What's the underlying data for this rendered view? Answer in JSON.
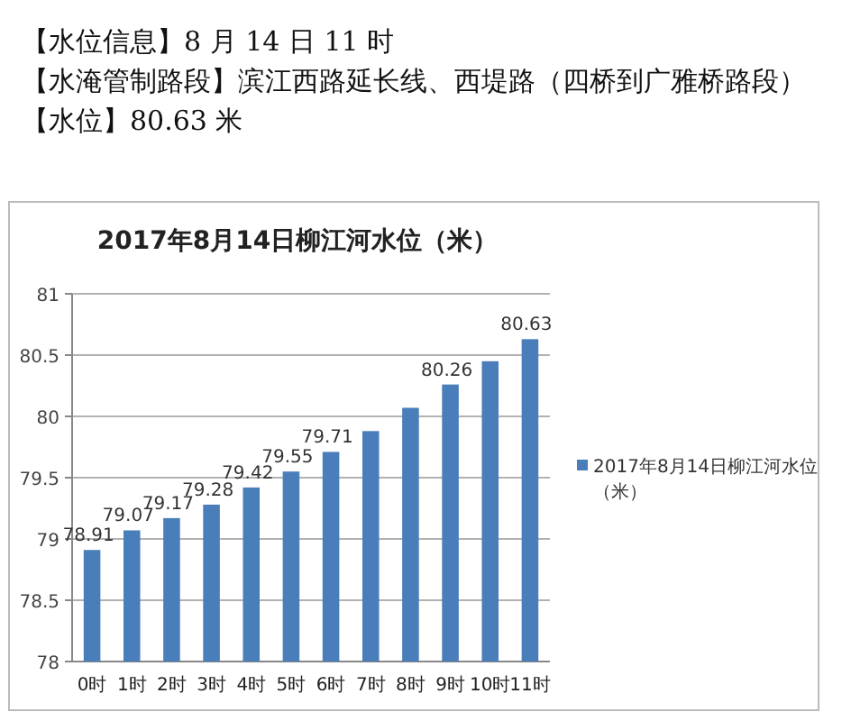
{
  "chart_data": {
    "type": "bar",
    "title": "2017年8月14日柳江河水位（米）",
    "annotations": [
      "【水位信息】8 月 14 日 11 时",
      "【水淹管制路段】滨江西路延长线、西堤路（四桥到广雅桥路段）",
      "【水位】80.63 米"
    ],
    "categories": [
      "0时",
      "1时",
      "2时",
      "3时",
      "4时",
      "5时",
      "6时",
      "7时",
      "8时",
      "9时",
      "10时",
      "11时"
    ],
    "series": [
      {
        "name": "2017年8月14日柳江河水位（米）",
        "color": "#4a7ebb",
        "values": [
          78.91,
          79.07,
          79.17,
          79.28,
          79.42,
          79.55,
          79.71,
          79.88,
          80.07,
          80.26,
          80.45,
          80.63
        ],
        "value_labels": [
          "78.91",
          "79.07",
          "79.17",
          "79.28",
          "79.42",
          "79.55",
          "79.71",
          null,
          null,
          "80.26",
          null,
          "80.63"
        ]
      }
    ],
    "ylim": [
      78,
      81
    ],
    "yticks": [
      78,
      78.5,
      79,
      79.5,
      80,
      80.5,
      81
    ],
    "grid": "y",
    "legend": "right"
  }
}
